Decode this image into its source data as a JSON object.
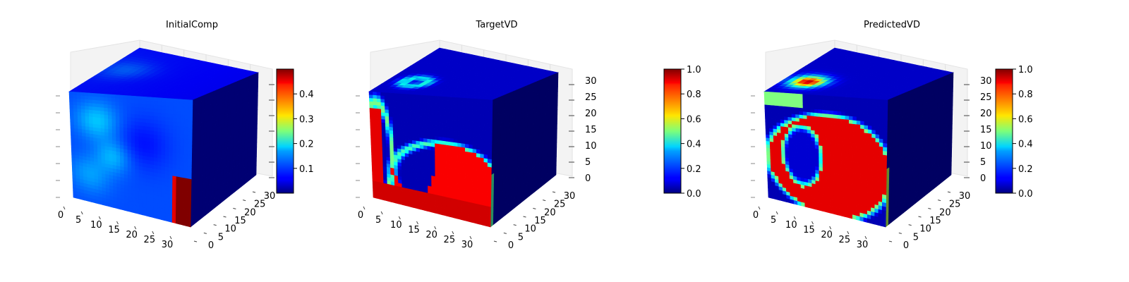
{
  "figure": {
    "description_type": "3d-voxel-heatmap-panels",
    "colormap": "jet"
  },
  "chart_data": [
    {
      "type": "heatmap",
      "title": "InitialComp",
      "x_ticks": [
        "0",
        "5",
        "10",
        "15",
        "20",
        "25",
        "30"
      ],
      "y_ticks": [
        "0",
        "5",
        "10",
        "15",
        "20",
        "25",
        "30"
      ],
      "z_ticks": [],
      "colorbar": {
        "range": [
          0.0,
          0.5
        ],
        "ticks": [
          "0.1",
          "0.2",
          "0.3",
          "0.4"
        ],
        "tick_values": [
          0.1,
          0.2,
          0.3,
          0.4
        ]
      },
      "front_face_features": [
        {
          "kind": "blob",
          "u": 0.12,
          "v": 0.78,
          "r": 0.18,
          "value": 0.07
        },
        {
          "kind": "blob",
          "u": 0.3,
          "v": 0.6,
          "r": 0.16,
          "value": 0.09
        },
        {
          "kind": "blob",
          "u": 0.1,
          "v": 0.18,
          "r": 0.16,
          "value": 0.08
        },
        {
          "kind": "blob",
          "u": 0.85,
          "v": 0.12,
          "r": 0.12,
          "value": 0.45
        },
        {
          "kind": "blob",
          "u": 0.55,
          "v": 0.3,
          "r": 0.2,
          "value": 0.08
        }
      ],
      "top_face_features": [
        {
          "kind": "blob",
          "u": 0.3,
          "v": 0.25,
          "r": 0.2,
          "value": 0.06
        }
      ],
      "base_value": 0.05
    },
    {
      "type": "heatmap",
      "title": "TargetVD",
      "x_ticks": [
        "0",
        "5",
        "10",
        "15",
        "20",
        "25",
        "30"
      ],
      "y_ticks": [
        "0",
        "5",
        "10",
        "15",
        "20",
        "25",
        "30"
      ],
      "z_ticks": [
        "0",
        "5",
        "10",
        "15",
        "20",
        "25",
        "30"
      ],
      "colorbar": {
        "range": [
          0.0,
          1.0
        ],
        "ticks": [
          "0.0",
          "0.2",
          "0.4",
          "0.6",
          "0.8",
          "1.0"
        ],
        "tick_values": [
          0,
          0.2,
          0.4,
          0.6,
          0.8,
          1.0
        ]
      },
      "base_value": 0.05
    },
    {
      "type": "heatmap",
      "title": "PredictedVD",
      "x_ticks": [
        "0",
        "5",
        "10",
        "15",
        "20",
        "25",
        "30"
      ],
      "y_ticks": [
        "0",
        "5",
        "10",
        "15",
        "20",
        "25",
        "30"
      ],
      "z_ticks": [
        "0",
        "5",
        "10",
        "15",
        "20",
        "25",
        "30"
      ],
      "colorbar": {
        "range": [
          0.0,
          1.0
        ],
        "ticks": [
          "0.0",
          "0.2",
          "0.4",
          "0.6",
          "0.8",
          "1.0"
        ],
        "tick_values": [
          0,
          0.2,
          0.4,
          0.6,
          0.8,
          1.0
        ]
      },
      "base_value": 0.05
    }
  ]
}
